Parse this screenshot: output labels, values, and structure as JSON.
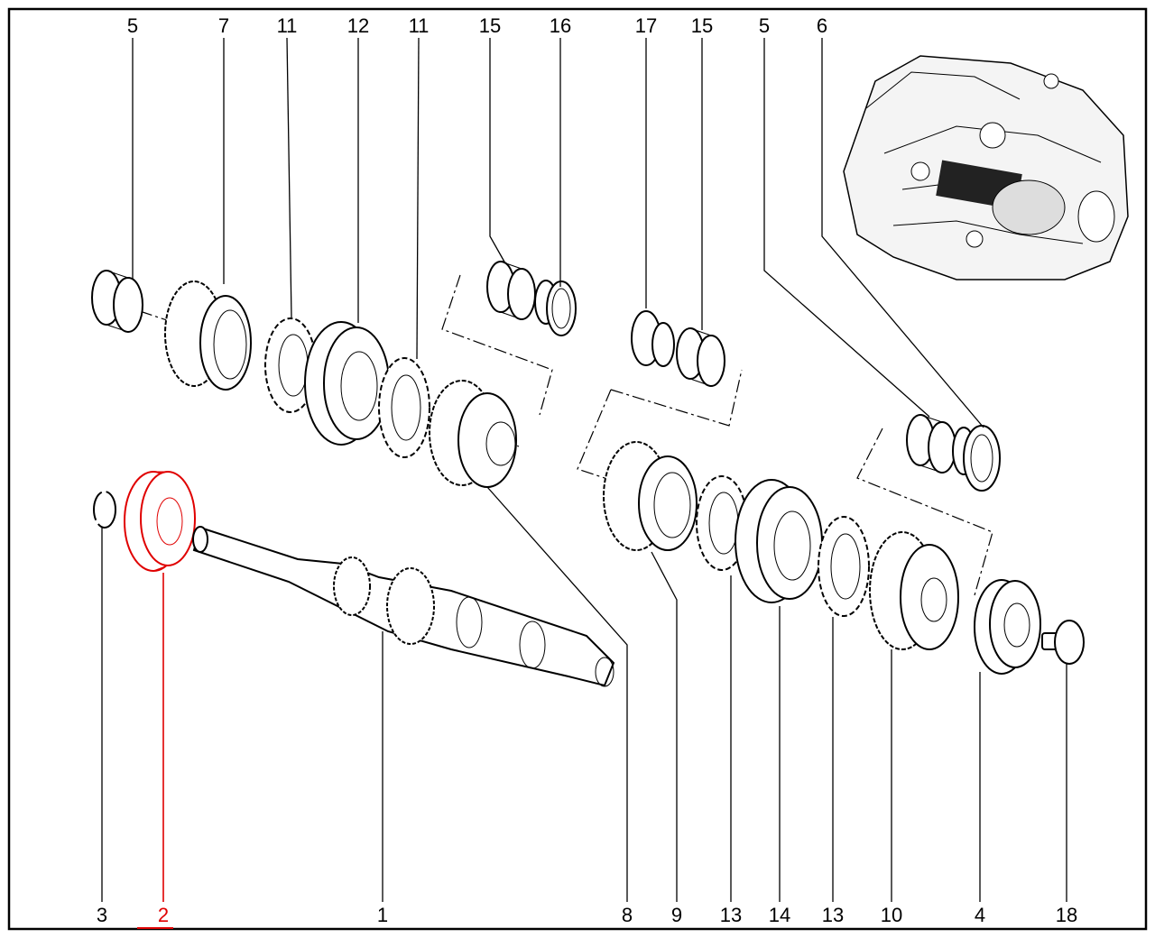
{
  "diagram": {
    "top_labels": [
      "5",
      "7",
      "11",
      "12",
      "11",
      "15",
      "16",
      "17",
      "15",
      "5",
      "6"
    ],
    "bottom_labels": [
      "3",
      "2",
      "1",
      "8",
      "9",
      "13",
      "14",
      "13",
      "10",
      "4",
      "18"
    ],
    "highlighted_label": "2",
    "colors": {
      "highlight": "#e00000",
      "line": "#000000",
      "frame": "#000000"
    },
    "inset": "transmission-housing-overview"
  }
}
